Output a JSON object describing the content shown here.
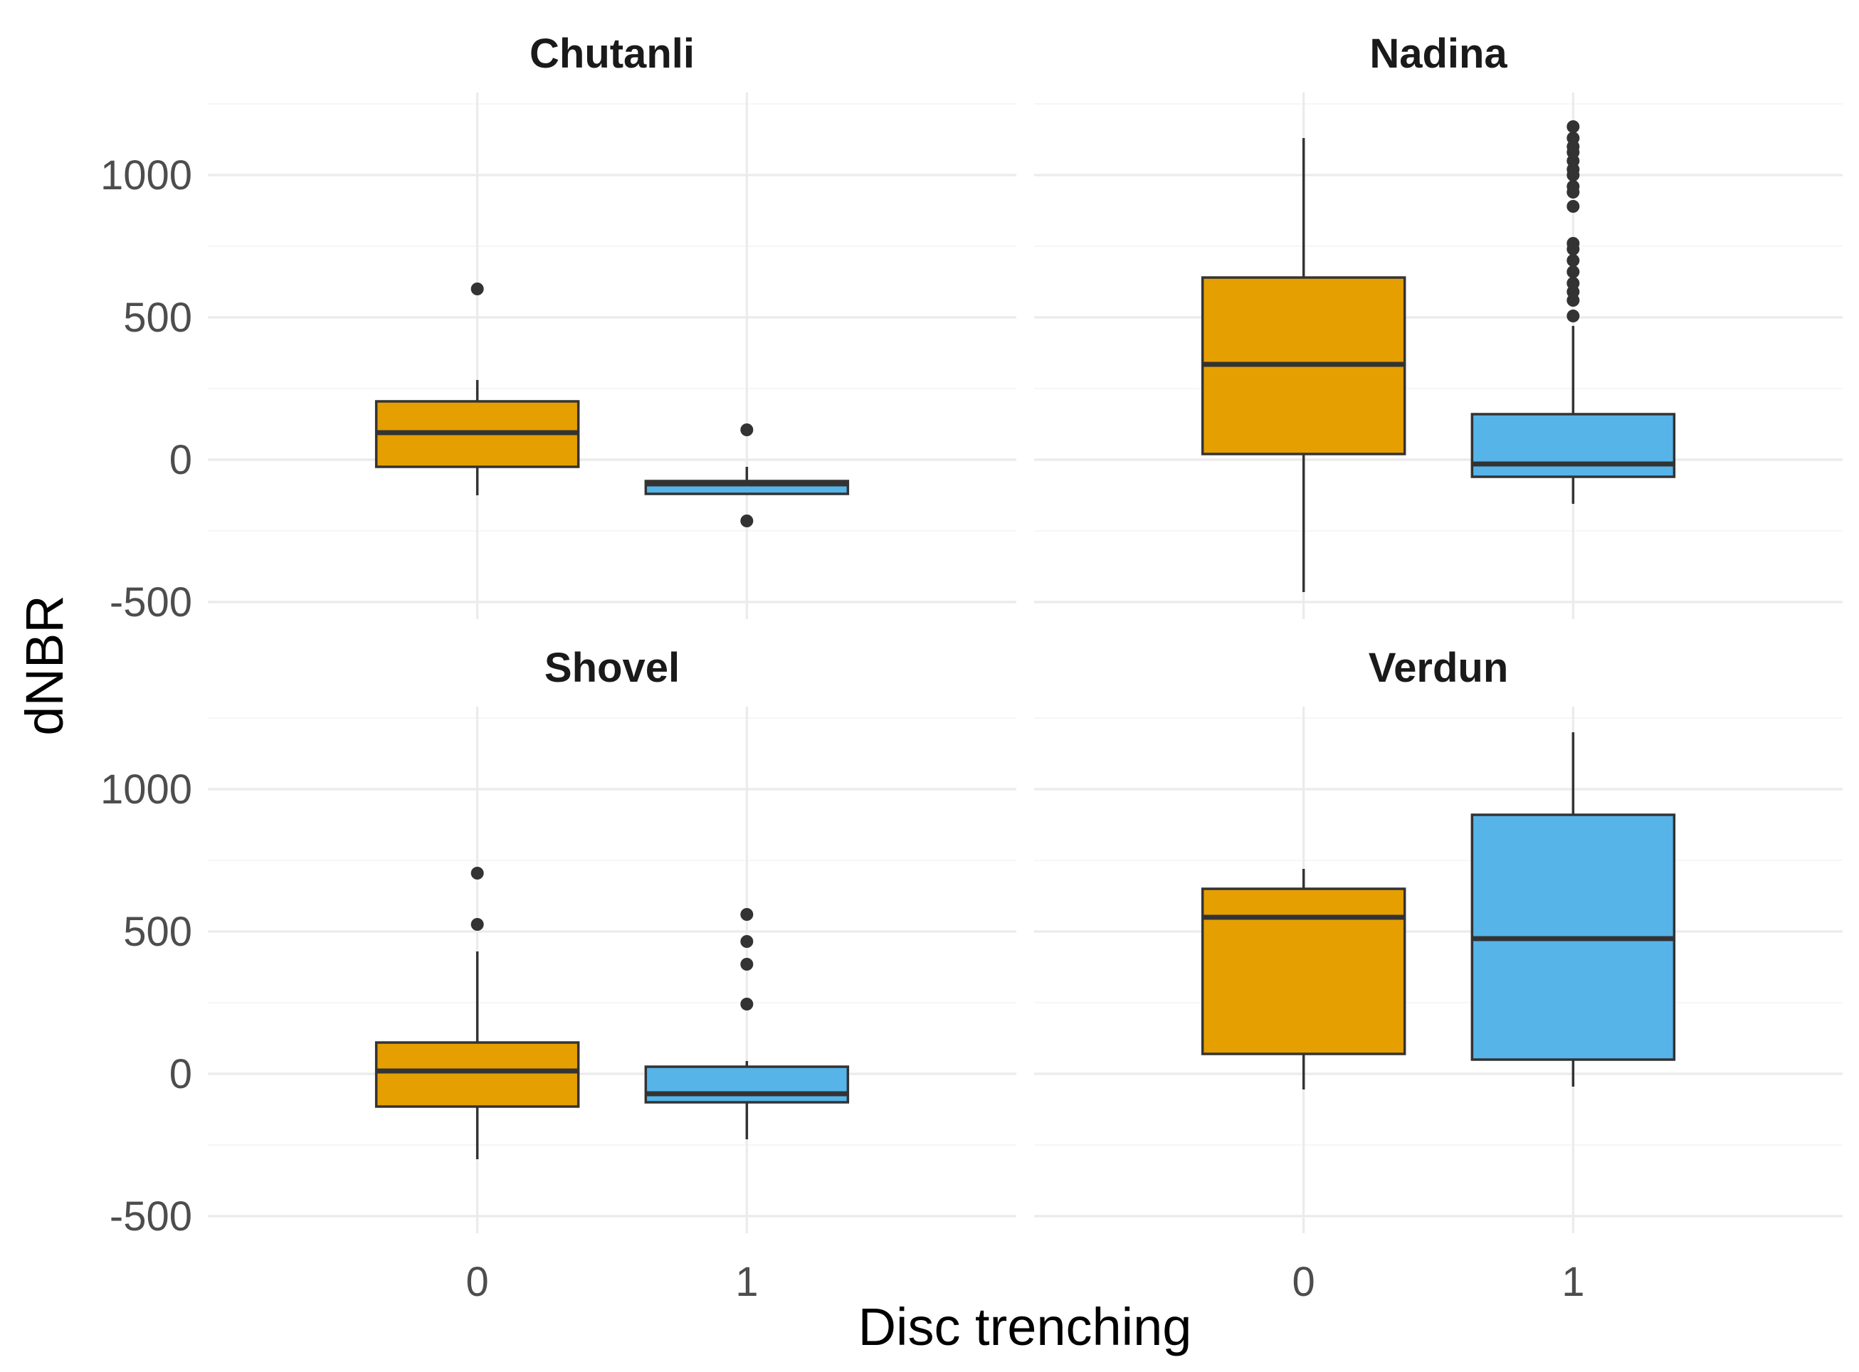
{
  "colors": {
    "0": "#E69F00",
    "1": "#56B4E9"
  },
  "chart_data": {
    "type": "boxplot",
    "xlabel": "Disc trenching",
    "ylabel": "dNBR",
    "categories": [
      "0",
      "1"
    ],
    "ylim": [
      -560,
      1290
    ],
    "yticks": [
      -500,
      0,
      500,
      1000
    ],
    "ytick_labels": [
      "-500",
      "0",
      "500",
      "1000"
    ],
    "grid": true,
    "legend": "none",
    "panels": [
      {
        "name": "Chutanli",
        "boxes": [
          {
            "category": "0",
            "q1": -25,
            "median": 95,
            "q3": 205,
            "whisker_low": -125,
            "whisker_high": 280,
            "outliers": [
              600
            ]
          },
          {
            "category": "1",
            "q1": -120,
            "median": -85,
            "q3": -75,
            "whisker_low": -120,
            "whisker_high": -25,
            "outliers": [
              105,
              -215
            ]
          }
        ]
      },
      {
        "name": "Nadina",
        "boxes": [
          {
            "category": "0",
            "q1": 20,
            "median": 335,
            "q3": 640,
            "whisker_low": -465,
            "whisker_high": 1130,
            "outliers": []
          },
          {
            "category": "1",
            "q1": -60,
            "median": -15,
            "q3": 160,
            "whisker_low": -155,
            "whisker_high": 470,
            "outliers": [
              505,
              560,
              590,
              620,
              660,
              700,
              740,
              760,
              890,
              940,
              960,
              1000,
              1020,
              1050,
              1080,
              1100,
              1130,
              1170
            ]
          }
        ]
      },
      {
        "name": "Shovel",
        "boxes": [
          {
            "category": "0",
            "q1": -115,
            "median": 10,
            "q3": 110,
            "whisker_low": -300,
            "whisker_high": 430,
            "outliers": [
              525,
              705
            ]
          },
          {
            "category": "1",
            "q1": -100,
            "median": -70,
            "q3": 25,
            "whisker_low": -230,
            "whisker_high": 45,
            "outliers": [
              245,
              385,
              465,
              560
            ]
          }
        ]
      },
      {
        "name": "Verdun",
        "boxes": [
          {
            "category": "0",
            "q1": 70,
            "median": 550,
            "q3": 650,
            "whisker_low": -55,
            "whisker_high": 720,
            "outliers": []
          },
          {
            "category": "1",
            "q1": 50,
            "median": 475,
            "q3": 910,
            "whisker_low": -45,
            "whisker_high": 1200,
            "outliers": []
          }
        ]
      }
    ]
  }
}
